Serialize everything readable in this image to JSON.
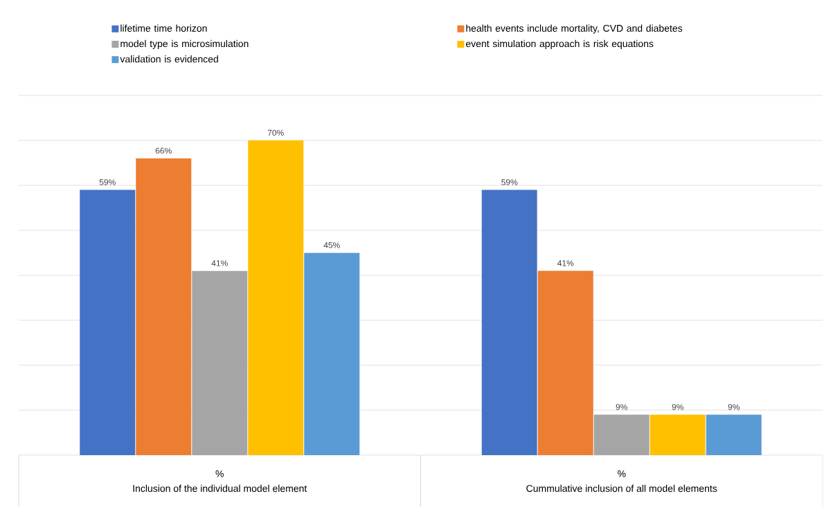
{
  "chart_data": {
    "type": "bar",
    "categories": [
      "Inclusion of the individual model element",
      "Cummulative inclusion of all model elements"
    ],
    "series": [
      {
        "name": "lifetime time horizon",
        "color": "#4472c4",
        "values": [
          59,
          59
        ],
        "value_labels": [
          "59%",
          "59%"
        ]
      },
      {
        "name": "health events include mortality, CVD and diabetes",
        "color": "#ed7d31",
        "values": [
          66,
          41
        ],
        "value_labels": [
          "66%",
          "41%"
        ]
      },
      {
        "name": "model type is microsimulation",
        "color": "#a5a5a5",
        "values": [
          41,
          9
        ],
        "value_labels": [
          "41%",
          "9%"
        ]
      },
      {
        "name": "event simulation approach is risk equations",
        "color": "#ffc000",
        "values": [
          70,
          9
        ],
        "value_labels": [
          "70%",
          "9%"
        ]
      },
      {
        "name": "validation is evidenced",
        "color": "#5b9bd5",
        "values": [
          45,
          9
        ],
        "value_labels": [
          "45%",
          "9%"
        ]
      }
    ],
    "annotations": [
      "%",
      "%"
    ],
    "ylim": [
      0,
      80
    ],
    "yticks": [
      {
        "value": 0,
        "label": null
      },
      {
        "value": 10,
        "label": null
      },
      {
        "value": 20,
        "label": null
      },
      {
        "value": 30,
        "label": null
      },
      {
        "value": 40,
        "label": null
      },
      {
        "value": 50,
        "label": null
      },
      {
        "value": 60,
        "label": null
      },
      {
        "value": 70,
        "label": null
      },
      {
        "value": 80,
        "label": null
      }
    ],
    "grid": "y",
    "legend": "top",
    "tick_labels": "x"
  }
}
